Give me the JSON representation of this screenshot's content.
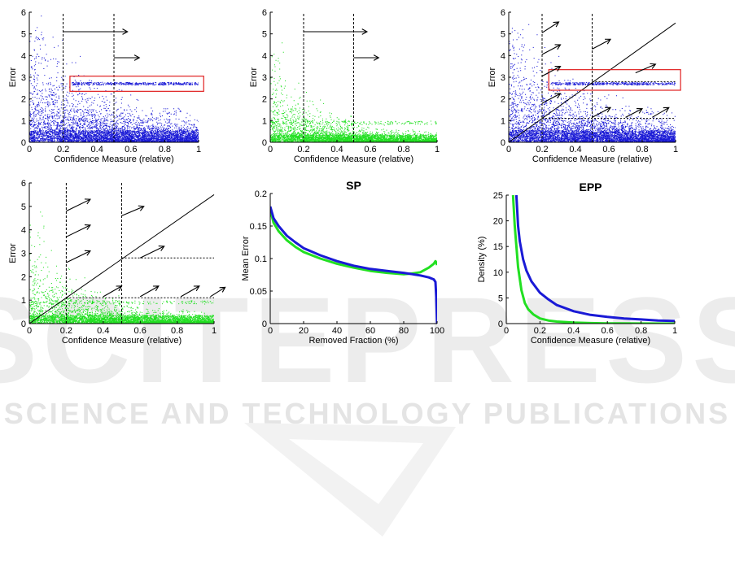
{
  "watermark": {
    "main": "SCITEPRESS",
    "sub": "SCIENCE AND TECHNOLOGY PUBLICATIONS"
  },
  "colors": {
    "blue": "#1a1ad6",
    "green": "#22e022",
    "red": "#e02020",
    "black": "#000000"
  },
  "chart_data": [
    {
      "id": "scatter-top-blue",
      "type": "scatter",
      "xlabel": "Confidence Measure (relative)",
      "ylabel": "Error",
      "xlim": [
        0,
        1
      ],
      "ylim": [
        0,
        6
      ],
      "xticks": [
        "0",
        "0.2",
        "0.4",
        "0.6",
        "0.8",
        "1"
      ],
      "yticks": [
        "0",
        "1",
        "2",
        "3",
        "4",
        "5",
        "6"
      ],
      "color": "blue",
      "mode": "blue",
      "vlines": [
        0.2,
        0.5
      ],
      "arrows": [
        [
          0.2,
          5.1,
          0.58,
          5.1
        ],
        [
          0.5,
          3.9,
          0.65,
          3.9
        ]
      ],
      "diagonal": false,
      "hlines": [],
      "highlight": {
        "x0": 0.24,
        "x1": 1.03,
        "y0": 2.35,
        "y1": 3.05
      }
    },
    {
      "id": "scatter-top-green",
      "type": "scatter",
      "xlabel": "Confidence Measure (relative)",
      "ylabel": "Error",
      "xlim": [
        0,
        1
      ],
      "ylim": [
        0,
        6
      ],
      "xticks": [
        "0",
        "0.2",
        "0.4",
        "0.6",
        "0.8",
        "1"
      ],
      "yticks": [
        "0",
        "1",
        "2",
        "3",
        "4",
        "5",
        "6"
      ],
      "color": "green",
      "mode": "green",
      "vlines": [
        0.2,
        0.5
      ],
      "arrows": [
        [
          0.2,
          5.1,
          0.58,
          5.1
        ],
        [
          0.5,
          3.9,
          0.65,
          3.9
        ]
      ],
      "diagonal": false,
      "hlines": []
    },
    {
      "id": "scatter-bottom-blue",
      "type": "scatter",
      "xlabel": "Confidence Measure (relative)",
      "ylabel": "Error",
      "xlim": [
        0,
        1
      ],
      "ylim": [
        0,
        6
      ],
      "xticks": [
        "0",
        "0.2",
        "0.4",
        "0.6",
        "0.8",
        "1"
      ],
      "yticks": [
        "0",
        "1",
        "2",
        "3",
        "4",
        "5",
        "6"
      ],
      "color": "blue",
      "mode": "blue",
      "vlines": [
        0.2,
        0.5
      ],
      "arrows": [
        [
          0.2,
          5.05,
          0.3,
          5.55
        ],
        [
          0.2,
          4.05,
          0.31,
          4.5
        ],
        [
          0.2,
          3.05,
          0.31,
          3.5
        ],
        [
          0.5,
          4.3,
          0.61,
          4.75
        ],
        [
          0.76,
          3.2,
          0.88,
          3.6
        ],
        [
          0.2,
          1.8,
          0.31,
          2.25
        ],
        [
          0.5,
          1.15,
          0.61,
          1.6
        ],
        [
          0.7,
          1.15,
          0.8,
          1.55
        ],
        [
          0.86,
          1.15,
          0.96,
          1.6
        ]
      ],
      "diagonal": true,
      "hlines": [
        [
          0.2,
          1,
          1.1
        ],
        [
          0.5,
          1,
          2.8
        ]
      ],
      "highlight": {
        "x0": 0.24,
        "x1": 1.03,
        "y0": 2.4,
        "y1": 3.35
      }
    },
    {
      "id": "scatter-bottom-green",
      "type": "scatter",
      "xlabel": "Confidence Measure (relative)",
      "ylabel": "Error",
      "xlim": [
        0,
        1
      ],
      "ylim": [
        0,
        6
      ],
      "xticks": [
        "0",
        "0.2",
        "0.4",
        "0.6",
        "0.8",
        "1"
      ],
      "yticks": [
        "0",
        "1",
        "2",
        "3",
        "4",
        "5",
        "6"
      ],
      "color": "green",
      "mode": "green",
      "vlines": [
        0.2,
        0.5
      ],
      "arrows": [
        [
          0.2,
          4.8,
          0.33,
          5.3
        ],
        [
          0.2,
          3.7,
          0.33,
          4.2
        ],
        [
          0.2,
          2.6,
          0.33,
          3.1
        ],
        [
          0.5,
          4.6,
          0.62,
          5.0
        ],
        [
          0.6,
          2.8,
          0.73,
          3.3
        ],
        [
          0.4,
          1.15,
          0.5,
          1.6
        ],
        [
          0.6,
          1.15,
          0.7,
          1.6
        ],
        [
          0.82,
          1.15,
          0.92,
          1.6
        ],
        [
          0.98,
          1.15,
          1.06,
          1.55
        ]
      ],
      "diagonal": true,
      "hlines": [
        [
          0.2,
          1,
          1.1
        ],
        [
          0.5,
          1,
          2.8
        ]
      ]
    },
    {
      "id": "line-sp",
      "type": "line",
      "title": "SP",
      "xlabel": "Removed Fraction (%)",
      "ylabel": "Mean Error",
      "xlim": [
        0,
        100
      ],
      "ylim": [
        0,
        0.2
      ],
      "xticks": [
        "0",
        "20",
        "40",
        "60",
        "80",
        "100"
      ],
      "yticks": [
        "0",
        "0.05",
        "0.1",
        "0.15",
        "0.2"
      ],
      "series": [
        {
          "color": "green",
          "x": [
            0,
            2,
            5,
            10,
            15,
            20,
            30,
            40,
            50,
            60,
            70,
            80,
            85,
            90,
            95,
            98,
            99,
            99.5,
            100
          ],
          "y": [
            0.175,
            0.155,
            0.142,
            0.128,
            0.118,
            0.11,
            0.1,
            0.092,
            0.086,
            0.081,
            0.078,
            0.076,
            0.077,
            0.079,
            0.086,
            0.092,
            0.096,
            0.094,
            0.09
          ]
        },
        {
          "color": "blue",
          "x": [
            0,
            2,
            5,
            10,
            15,
            20,
            30,
            40,
            50,
            60,
            70,
            80,
            85,
            90,
            95,
            98,
            99,
            99.5,
            100
          ],
          "y": [
            0.18,
            0.162,
            0.15,
            0.135,
            0.125,
            0.116,
            0.105,
            0.096,
            0.089,
            0.084,
            0.081,
            0.078,
            0.076,
            0.074,
            0.071,
            0.068,
            0.064,
            0.04,
            0.0
          ]
        }
      ]
    },
    {
      "id": "line-epp",
      "type": "line",
      "title": "EPP",
      "xlabel": "Confidence Measure (relative)",
      "ylabel": "Density (%)",
      "xlim": [
        0,
        1
      ],
      "ylim": [
        0,
        25
      ],
      "xticks": [
        "0",
        "0.2",
        "0.4",
        "0.6",
        "0.8",
        "1"
      ],
      "yticks": [
        "0",
        "5",
        "10",
        "15",
        "20",
        "25"
      ],
      "series": [
        {
          "color": "green",
          "x": [
            0.04,
            0.05,
            0.07,
            0.09,
            0.11,
            0.13,
            0.16,
            0.2,
            0.25,
            0.3,
            0.4,
            0.5,
            0.6,
            0.8,
            1.0
          ],
          "y": [
            25,
            19,
            11,
            6.5,
            4.0,
            2.8,
            1.8,
            1.0,
            0.6,
            0.4,
            0.2,
            0.1,
            0.05,
            0.02,
            0.0
          ]
        },
        {
          "color": "blue",
          "x": [
            0.06,
            0.07,
            0.08,
            0.1,
            0.12,
            0.15,
            0.2,
            0.25,
            0.3,
            0.4,
            0.5,
            0.6,
            0.7,
            0.8,
            0.9,
            1.0
          ],
          "y": [
            25,
            19,
            16,
            12.5,
            10.3,
            8.2,
            6.0,
            4.7,
            3.6,
            2.4,
            1.7,
            1.3,
            1.0,
            0.8,
            0.6,
            0.5
          ]
        }
      ]
    }
  ]
}
